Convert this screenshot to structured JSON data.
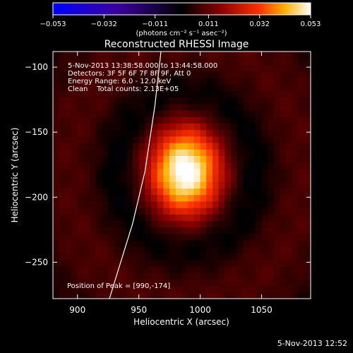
{
  "chart_data": {
    "type": "heatmap",
    "title": "Reconstructed RHESSI Image",
    "xlabel": "Heliocentric X (arcsec)",
    "ylabel": "Heliocentric Y (arcsec)",
    "xlim": [
      880,
      1090
    ],
    "ylim": [
      -278,
      -88
    ],
    "x_ticks": [
      900,
      950,
      1000,
      1050
    ],
    "x_tick_labels": [
      "900",
      "950",
      "1000",
      "1050"
    ],
    "y_ticks": [
      -100,
      -150,
      -200,
      -250
    ],
    "y_tick_labels": [
      "−100",
      "−150",
      "−200",
      "−250"
    ],
    "colorbar": {
      "min": -0.053,
      "max": 0.053,
      "ticks": [
        -0.053,
        -0.032,
        -0.011,
        0.011,
        0.032,
        0.053
      ],
      "tick_labels": [
        "−0.053",
        "−0.032",
        "−0.011",
        "0.011",
        "0.032",
        "0.053"
      ],
      "label": "(photons cm⁻² s⁻¹ asec⁻²)"
    },
    "peak_position": [
      990,
      -174
    ],
    "peak_value": 0.053,
    "limb_curve": [
      [
        926,
        -278
      ],
      [
        945,
        -220
      ],
      [
        955,
        -180
      ],
      [
        963,
        -130
      ],
      [
        968,
        -88
      ]
    ],
    "info_lines": [
      "5-Nov-2013 13:38:58.000 to 13:44:58.000",
      "Detectors: 3F 5F 6F 7F 8F 9F, Att 0",
      "Energy Range: 6.0 - 12.0 keV",
      "Clean    Total counts: 2.13E+05"
    ],
    "peak_annotation": "Position of Peak = [990,-174]"
  },
  "footer_timestamp": "5-Nov-2013 12:52"
}
